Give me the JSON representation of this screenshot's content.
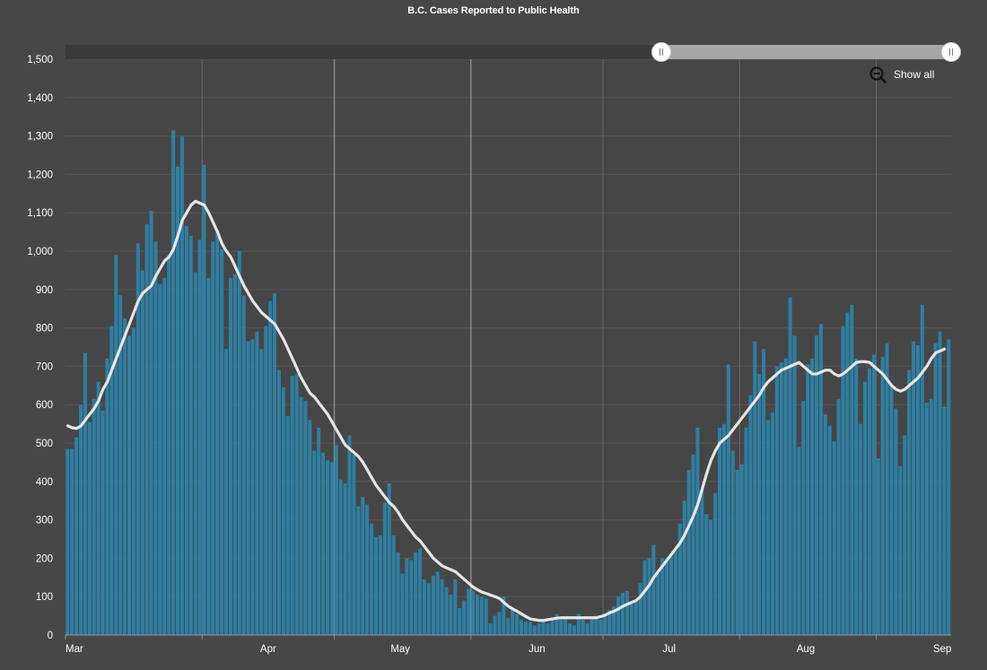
{
  "chart_data": {
    "type": "bar",
    "title": "B.C. Cases Reported to Public Health",
    "xlabel": "",
    "ylabel": "",
    "ylim": [
      0,
      1500
    ],
    "y_ticks": [
      "0",
      "100",
      "200",
      "300",
      "400",
      "500",
      "600",
      "700",
      "800",
      "900",
      "1,000",
      "1,100",
      "1,200",
      "1,300",
      "1,400",
      "1,500"
    ],
    "x_ticks": [
      "Mar",
      "Apr",
      "May",
      "Jun",
      "Jul",
      "Aug",
      "Sep"
    ],
    "grid": true,
    "bar_color": "#2e7fa3",
    "line_color": "#e6e6e6",
    "series": [
      {
        "type": "bar",
        "values": [
          485,
          485,
          515,
          600,
          735,
          555,
          615,
          660,
          585,
          720,
          805,
          990,
          885,
          825,
          780,
          800,
          1020,
          950,
          1070,
          1105,
          1025,
          915,
          930,
          990,
          1315,
          1220,
          1300,
          1065,
          1040,
          945,
          1030,
          1225,
          930,
          1025,
          1055,
          1005,
          745,
          930,
          940,
          1000,
          885,
          765,
          770,
          790,
          745,
          805,
          870,
          890,
          690,
          645,
          570,
          675,
          680,
          620,
          610,
          560,
          480,
          540,
          475,
          455,
          450,
          495,
          405,
          395,
          520,
          470,
          335,
          360,
          340,
          290,
          255,
          260,
          345,
          395,
          260,
          215,
          160,
          200,
          195,
          215,
          225,
          145,
          135,
          155,
          165,
          145,
          125,
          105,
          145,
          70,
          90,
          120,
          115,
          105,
          100,
          95,
          30,
          50,
          60,
          100,
          45,
          65,
          55,
          40,
          35,
          35,
          25,
          30,
          40,
          30,
          45,
          55,
          40,
          50,
          30,
          25,
          55,
          40,
          30,
          45,
          50,
          40,
          55,
          65,
          75,
          100,
          110,
          115,
          80,
          90,
          135,
          195,
          200,
          235,
          160,
          200,
          200,
          205,
          220,
          290,
          350,
          430,
          470,
          540,
          380,
          315,
          300,
          370,
          540,
          550,
          705,
          480,
          430,
          445,
          540,
          625,
          765,
          680,
          745,
          560,
          580,
          700,
          710,
          720,
          880,
          780,
          490,
          610,
          705,
          720,
          780,
          810,
          575,
          545,
          505,
          615,
          805,
          840,
          860,
          720,
          550,
          660,
          695,
          730,
          460,
          725,
          760,
          650,
          590,
          440,
          520,
          690,
          765,
          755,
          860,
          605,
          615,
          760,
          790,
          595,
          770
        ]
      },
      {
        "type": "line",
        "values": [
          545,
          540,
          538,
          545,
          560,
          575,
          590,
          610,
          640,
          660,
          690,
          720,
          750,
          780,
          810,
          840,
          870,
          890,
          900,
          910,
          935,
          955,
          975,
          985,
          1005,
          1040,
          1080,
          1100,
          1120,
          1130,
          1125,
          1120,
          1100,
          1075,
          1050,
          1020,
          1000,
          985,
          960,
          935,
          910,
          890,
          870,
          855,
          840,
          830,
          820,
          810,
          790,
          770,
          745,
          720,
          695,
          670,
          650,
          630,
          620,
          605,
          590,
          575,
          555,
          535,
          515,
          495,
          485,
          475,
          465,
          450,
          430,
          410,
          390,
          375,
          360,
          345,
          335,
          320,
          300,
          285,
          270,
          255,
          245,
          230,
          215,
          200,
          190,
          180,
          175,
          170,
          165,
          155,
          145,
          135,
          125,
          118,
          112,
          108,
          104,
          100,
          95,
          85,
          75,
          68,
          62,
          55,
          48,
          42,
          40,
          38,
          38,
          40,
          42,
          44,
          45,
          45,
          45,
          45,
          45,
          45,
          45,
          45,
          45,
          48,
          52,
          58,
          62,
          68,
          75,
          80,
          85,
          90,
          100,
          115,
          130,
          150,
          165,
          180,
          195,
          210,
          225,
          240,
          260,
          285,
          310,
          340,
          380,
          420,
          455,
          480,
          500,
          510,
          520,
          535,
          550,
          565,
          580,
          595,
          610,
          625,
          645,
          660,
          670,
          680,
          690,
          695,
          700,
          705,
          710,
          700,
          690,
          680,
          680,
          685,
          690,
          690,
          680,
          675,
          680,
          690,
          700,
          710,
          712,
          712,
          710,
          700,
          690,
          680,
          665,
          650,
          640,
          635,
          640,
          650,
          660,
          670,
          685,
          700,
          720,
          735,
          740,
          745
        ]
      }
    ]
  },
  "slider": {
    "start_handle": "||",
    "end_handle": "||"
  },
  "controls": {
    "show_all_label": "Show all"
  }
}
